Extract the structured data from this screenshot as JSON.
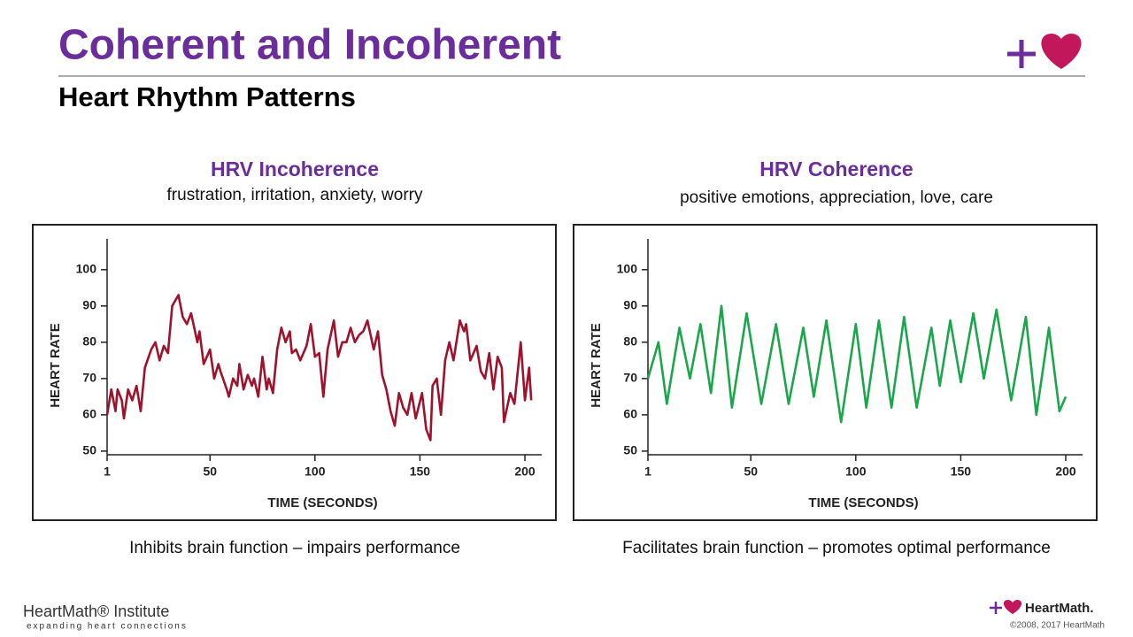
{
  "title": "Coherent and Incoherent",
  "subtitle": "Heart Rhythm Patterns",
  "footer": {
    "brand": "HeartMath® Institute",
    "tagline": "expanding heart connections",
    "logo_text": "HeartMath.",
    "copyright": "©2008, 2017 HeartMath"
  },
  "chart_data": [
    {
      "type": "line",
      "title": "HRV Incoherence",
      "subtitle": "frustration, irritation, anxiety, worry",
      "caption": "Inhibits brain function – impairs performance",
      "xlabel": "TIME (SECONDS)",
      "ylabel": "HEART RATE",
      "xlim": [
        1,
        208
      ],
      "xticks": [
        1,
        50,
        100,
        150,
        200
      ],
      "ylim": [
        49,
        108
      ],
      "yticks": [
        50,
        60,
        70,
        80,
        90,
        100
      ],
      "x": [
        1,
        3,
        5,
        6,
        8,
        9,
        11,
        13,
        15,
        17,
        19,
        22,
        24,
        26,
        28,
        30,
        32,
        35,
        37,
        39,
        41,
        44,
        45,
        47,
        50,
        52,
        54,
        55,
        58,
        59,
        61,
        63,
        64,
        66,
        68,
        70,
        71,
        73,
        75,
        77,
        78,
        80,
        82,
        84,
        86,
        88,
        89,
        91,
        93,
        96,
        98,
        100,
        102,
        104,
        106,
        109,
        111,
        113,
        115,
        117,
        119,
        121,
        123,
        125,
        128,
        130,
        132,
        134,
        136,
        138,
        140,
        142,
        144,
        146,
        148,
        151,
        153,
        155,
        156,
        158,
        160,
        162,
        164,
        166,
        169,
        171,
        172,
        174,
        177,
        179,
        181,
        183,
        185,
        187,
        189,
        190,
        193,
        195,
        198,
        200,
        202,
        203
      ],
      "series": [
        {
          "name": "HRV Incoherence",
          "color": "#a0112b",
          "values": [
            60,
            67,
            61,
            67,
            64,
            59,
            67,
            64,
            68,
            61,
            73,
            78,
            80,
            75,
            79,
            77,
            90,
            93,
            87,
            85,
            88,
            80,
            83,
            74,
            78,
            70,
            74,
            72,
            67,
            65,
            70,
            68,
            74,
            67,
            71,
            68,
            70,
            65,
            76,
            67,
            70,
            66,
            78,
            84,
            80,
            83,
            77,
            78,
            75,
            79,
            85,
            76,
            77,
            65,
            78,
            86,
            76,
            80,
            80,
            84,
            80,
            82,
            83,
            86,
            78,
            83,
            71,
            67,
            61,
            57,
            66,
            62,
            60,
            66,
            59,
            66,
            56,
            53,
            68,
            70,
            60,
            75,
            80,
            75,
            86,
            83,
            85,
            75,
            79,
            72,
            70,
            77,
            67,
            76,
            73,
            58,
            66,
            63,
            80,
            64,
            73,
            64
          ]
        }
      ]
    },
    {
      "type": "line",
      "title": "HRV Coherence",
      "subtitle": "positive emotions, appreciation, love, care",
      "caption": "Facilitates brain function – promotes optimal performance",
      "xlabel": "TIME (SECONDS)",
      "ylabel": "HEART RATE",
      "xlim": [
        1,
        208
      ],
      "xticks": [
        1,
        50,
        100,
        150,
        200
      ],
      "ylim": [
        49,
        108
      ],
      "yticks": [
        50,
        60,
        70,
        80,
        90,
        100
      ],
      "x": [
        1,
        6,
        10,
        16,
        21,
        26,
        31,
        36,
        41,
        48,
        55,
        62,
        68,
        75,
        80,
        86,
        93,
        100,
        105,
        111,
        117,
        123,
        129,
        136,
        140,
        145,
        150,
        156,
        161,
        167,
        174,
        181,
        186,
        192,
        197,
        200
      ],
      "series": [
        {
          "name": "HRV Coherence",
          "color": "#1aa64a",
          "values": [
            70,
            80,
            63,
            84,
            70,
            85,
            66,
            90,
            62,
            88,
            63,
            85,
            63,
            84,
            65,
            86,
            58,
            85,
            62,
            86,
            62,
            87,
            62,
            84,
            68,
            86,
            69,
            88,
            70,
            89,
            64,
            87,
            60,
            84,
            61,
            65
          ]
        }
      ]
    }
  ]
}
